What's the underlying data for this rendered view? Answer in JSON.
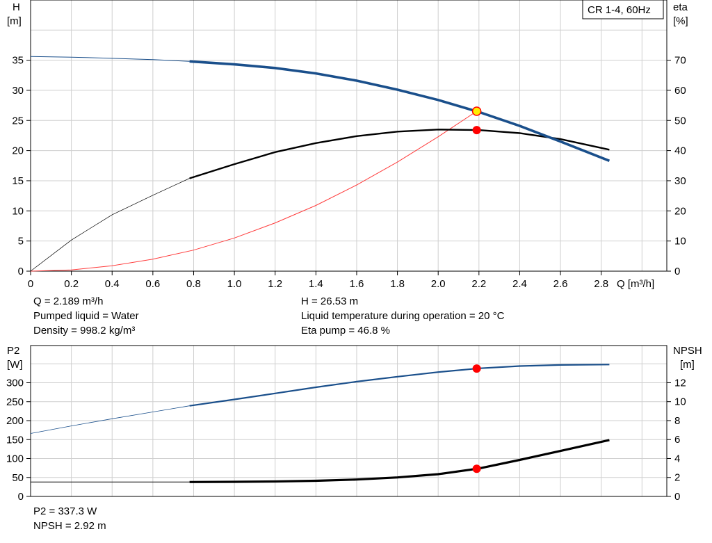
{
  "colors": {
    "head": "#1a4f8b",
    "eta": "#000000",
    "npsh_curve": "#000000",
    "p2_curve": "#1a4f8b",
    "npsh_req": "#ff3b3b",
    "duty_point": "#ff0000",
    "duty_point_fill": "#ffee00",
    "grid": "#cfcfcf"
  },
  "top": {
    "left_axis": {
      "title": "H",
      "unit": "[m]"
    },
    "right_axis": {
      "title": "eta",
      "unit": "[%]"
    },
    "legend": "CR 1-4, 60Hz",
    "x_ticks": [
      "0",
      "0.2",
      "0.4",
      "0.6",
      "0.8",
      "1.0",
      "1.2",
      "1.4",
      "1.6",
      "1.8",
      "2.0",
      "2.2",
      "2.4",
      "2.6",
      "2.8"
    ],
    "x_label": "Q [m³/h]",
    "left_ticks": [
      "0",
      "5",
      "10",
      "15",
      "20",
      "25",
      "30",
      "35"
    ],
    "right_ticks": [
      "0",
      "10",
      "20",
      "30",
      "40",
      "50",
      "60",
      "70"
    ]
  },
  "info": {
    "q": "Q = 2.189 m³/h",
    "liquid": "Pumped liquid = Water",
    "density": "Density = 998.2 kg/m³",
    "h": "H = 26.53 m",
    "temp": "Liquid temperature during operation = 20 °C",
    "eta": "Eta pump = 46.8 %"
  },
  "bottom": {
    "left_axis": {
      "title": "P2",
      "unit": "[W]"
    },
    "right_axis": {
      "title": "NPSH",
      "unit": "[m]"
    },
    "left_ticks": [
      "0",
      "50",
      "100",
      "150",
      "200",
      "250",
      "300"
    ],
    "right_ticks": [
      "0",
      "2",
      "4",
      "6",
      "8",
      "10",
      "12"
    ]
  },
  "info2": {
    "p2": "P2 = 337.3 W",
    "npsh": "NPSH = 2.92 m"
  },
  "chart_data": [
    {
      "type": "line",
      "title": "CR 1-4, 60Hz",
      "xlabel": "Q [m³/h]",
      "ylabel": "H [m]",
      "y2label": "eta [%]",
      "xlim": [
        0,
        3.0
      ],
      "ylim": [
        0,
        40
      ],
      "y2lim": [
        0,
        80
      ],
      "grid": true,
      "legend": "top-right",
      "series": [
        {
          "name": "H",
          "axis": "left",
          "x": [
            0,
            0.2,
            0.4,
            0.6,
            0.78,
            1.0,
            1.2,
            1.4,
            1.6,
            1.8,
            2.0,
            2.2,
            2.4,
            2.6,
            2.84
          ],
          "y": [
            35.6,
            35.5,
            35.3,
            35.1,
            34.8,
            34.3,
            33.7,
            32.8,
            31.6,
            30.1,
            28.4,
            26.4,
            24.1,
            21.5,
            18.3
          ]
        },
        {
          "name": "eta",
          "axis": "right",
          "x": [
            0,
            0.2,
            0.4,
            0.6,
            0.78,
            1.0,
            1.2,
            1.4,
            1.6,
            1.8,
            2.0,
            2.2,
            2.4,
            2.6,
            2.84
          ],
          "y": [
            0,
            10.3,
            18.7,
            25.2,
            30.8,
            35.5,
            39.5,
            42.5,
            44.8,
            46.3,
            47.0,
            46.8,
            45.8,
            43.8,
            40.3
          ]
        },
        {
          "name": "H system",
          "axis": "left",
          "x": [
            0,
            0.2,
            0.4,
            0.6,
            0.8,
            1.0,
            1.2,
            1.4,
            1.6,
            1.8,
            2.0,
            2.189
          ],
          "y": [
            0,
            0.2,
            0.9,
            2.0,
            3.5,
            5.5,
            8.0,
            10.9,
            14.3,
            18.1,
            22.3,
            26.53
          ]
        }
      ],
      "duty_point": {
        "q": 2.189,
        "h": 26.53,
        "eta": 46.8
      }
    },
    {
      "type": "line",
      "xlabel": "Q [m³/h]",
      "ylabel": "P2 [W]",
      "y2label": "NPSH [m]",
      "xlim": [
        0,
        3.0
      ],
      "ylim": [
        0,
        350
      ],
      "y2lim": [
        0,
        14
      ],
      "grid": true,
      "series": [
        {
          "name": "P2",
          "axis": "left",
          "x": [
            0,
            0.2,
            0.4,
            0.6,
            0.78,
            1.0,
            1.2,
            1.4,
            1.6,
            1.8,
            2.0,
            2.2,
            2.4,
            2.6,
            2.84
          ],
          "y": [
            166,
            186,
            205,
            223,
            239,
            256,
            272,
            288,
            303,
            316,
            328,
            338,
            344,
            347,
            348
          ]
        },
        {
          "name": "NPSH",
          "axis": "right",
          "x": [
            0,
            0.2,
            0.4,
            0.6,
            0.78,
            1.0,
            1.2,
            1.4,
            1.6,
            1.8,
            2.0,
            2.2,
            2.4,
            2.6,
            2.84
          ],
          "y": [
            1.52,
            1.52,
            1.52,
            1.52,
            1.52,
            1.54,
            1.58,
            1.65,
            1.78,
            2.0,
            2.35,
            2.95,
            3.85,
            4.8,
            5.95
          ]
        }
      ],
      "duty_point": {
        "q": 2.189,
        "p2": 337.3,
        "npsh": 2.92
      }
    }
  ]
}
